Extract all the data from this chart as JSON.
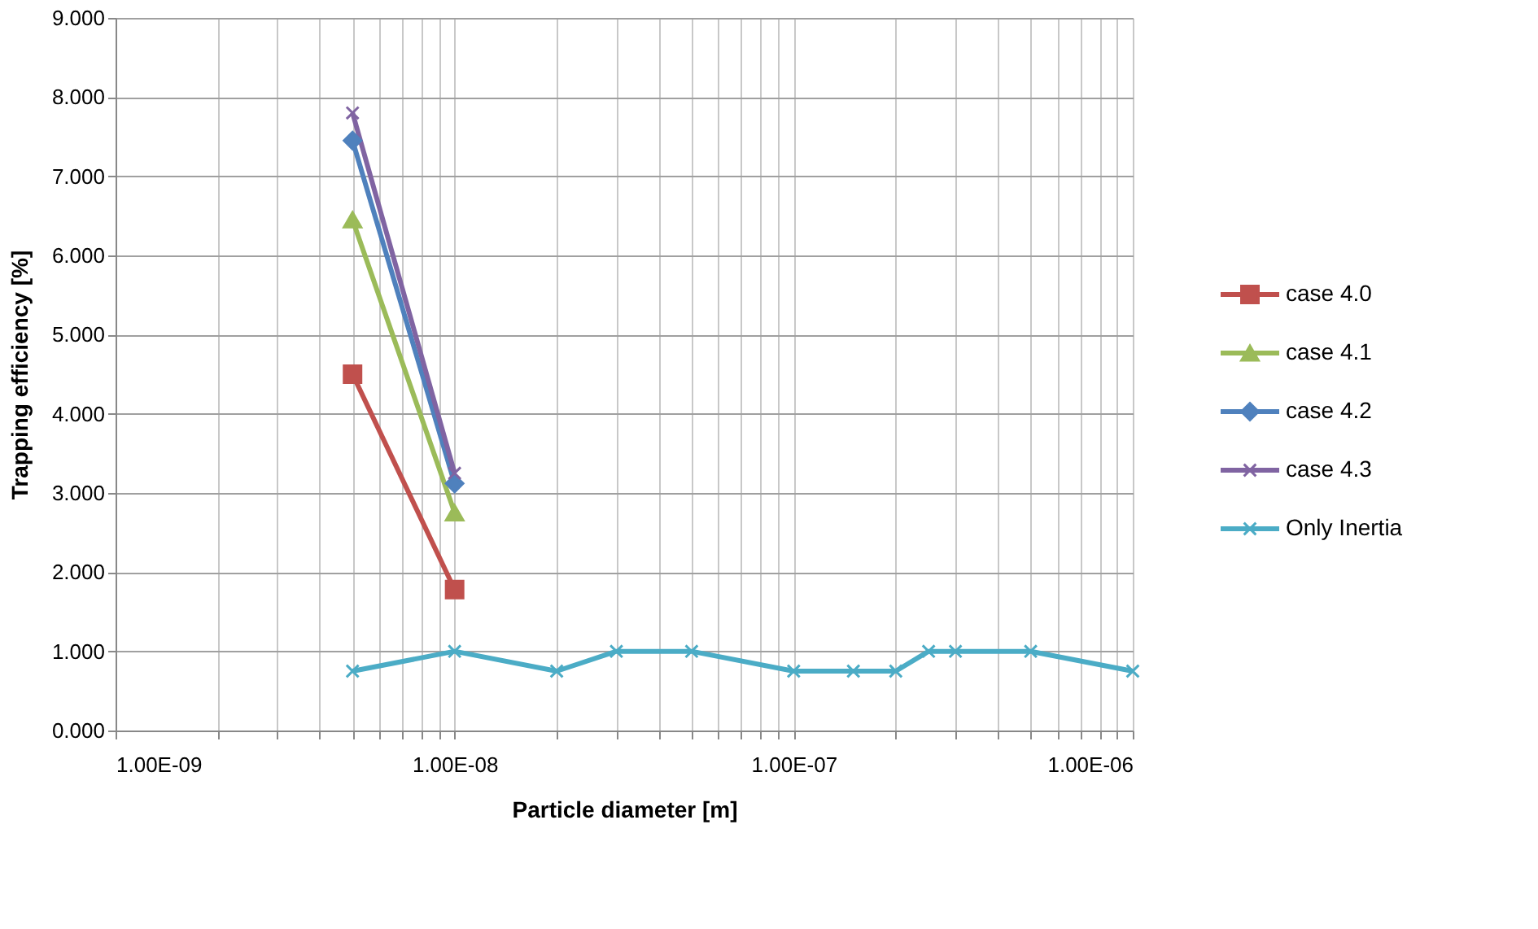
{
  "chart_data": {
    "type": "line",
    "xlabel": "Particle diameter [m]",
    "ylabel": "Trapping efficiency [%]",
    "log": "x",
    "grid": true,
    "legend": "right",
    "line_style": "solid",
    "xlim": [
      1e-09,
      1e-06
    ],
    "ylim": [
      0,
      9
    ],
    "xticks": [
      {
        "value": 1e-09,
        "label": "1.00E-09"
      },
      {
        "value": 2e-09,
        "label": null
      },
      {
        "value": 3e-09,
        "label": null
      },
      {
        "value": 4e-09,
        "label": null
      },
      {
        "value": 5e-09,
        "label": null
      },
      {
        "value": 6e-09,
        "label": null
      },
      {
        "value": 7e-09,
        "label": null
      },
      {
        "value": 8e-09,
        "label": null
      },
      {
        "value": 9e-09,
        "label": null
      },
      {
        "value": 1e-08,
        "label": "1.00E-08"
      },
      {
        "value": 2e-08,
        "label": null
      },
      {
        "value": 3e-08,
        "label": null
      },
      {
        "value": 4e-08,
        "label": null
      },
      {
        "value": 5e-08,
        "label": null
      },
      {
        "value": 6e-08,
        "label": null
      },
      {
        "value": 7e-08,
        "label": null
      },
      {
        "value": 8e-08,
        "label": null
      },
      {
        "value": 9e-08,
        "label": null
      },
      {
        "value": 1e-07,
        "label": "1.00E-07"
      },
      {
        "value": 2e-07,
        "label": null
      },
      {
        "value": 3e-07,
        "label": null
      },
      {
        "value": 4e-07,
        "label": null
      },
      {
        "value": 5e-07,
        "label": null
      },
      {
        "value": 6e-07,
        "label": null
      },
      {
        "value": 7e-07,
        "label": null
      },
      {
        "value": 8e-07,
        "label": null
      },
      {
        "value": 9e-07,
        "label": null
      },
      {
        "value": 1e-06,
        "label": "1.00E-06"
      }
    ],
    "yticks": [
      {
        "value": 0,
        "label": "0.000"
      },
      {
        "value": 1,
        "label": "1.000"
      },
      {
        "value": 2,
        "label": "2.000"
      },
      {
        "value": 3,
        "label": "3.000"
      },
      {
        "value": 4,
        "label": "4.000"
      },
      {
        "value": 5,
        "label": "5.000"
      },
      {
        "value": 6,
        "label": "6.000"
      },
      {
        "value": 7,
        "label": "7.000"
      },
      {
        "value": 8,
        "label": "8.000"
      },
      {
        "value": 9,
        "label": "9.000"
      }
    ],
    "series": [
      {
        "name": "case 4.0",
        "color": "#c0504d",
        "marker": "square",
        "x": [
          5e-09,
          1e-08
        ],
        "values": [
          4.5,
          1.78
        ]
      },
      {
        "name": "case 4.1",
        "color": "#9bbb59",
        "marker": "triangle",
        "x": [
          5e-09,
          1e-08
        ],
        "values": [
          6.45,
          2.75
        ]
      },
      {
        "name": "case 4.2",
        "color": "#4f81bd",
        "marker": "diamond",
        "x": [
          5e-09,
          1e-08
        ],
        "values": [
          7.45,
          3.12
        ]
      },
      {
        "name": "case 4.3",
        "color": "#8064a2",
        "marker": "cross",
        "x": [
          5e-09,
          1e-08
        ],
        "values": [
          7.8,
          3.25
        ]
      },
      {
        "name": "Only Inertia",
        "color": "#4bacc6",
        "marker": "cross",
        "x": [
          5e-09,
          1e-08,
          2e-08,
          3e-08,
          5e-08,
          1e-07,
          1.5e-07,
          2e-07,
          2.5e-07,
          3e-07,
          5e-07,
          1e-06
        ],
        "values": [
          0.75,
          1,
          0.75,
          1,
          1,
          0.75,
          0.75,
          0.75,
          1,
          1,
          1,
          0.75
        ]
      }
    ]
  }
}
